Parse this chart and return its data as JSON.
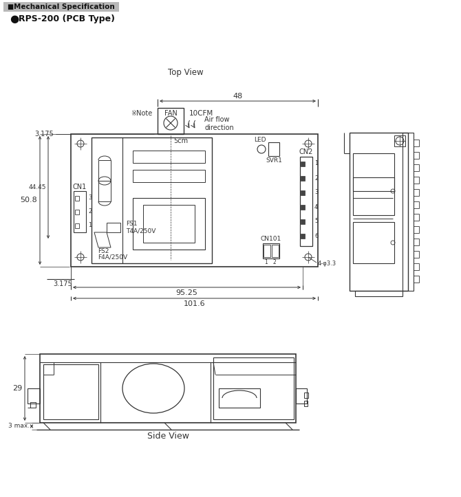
{
  "title_header": "Mechanical Specification",
  "subtitle": "RPS-200 (PCB Type)",
  "top_view_label": "Top View",
  "side_view_label": "Side View",
  "dim_48": "48",
  "dim_50_8": "50.8",
  "dim_44_45": "44.45",
  "dim_3_175_top": "3.175",
  "dim_3_175_bot": "3.175",
  "dim_95_25": "95.25",
  "dim_101_6": "101.6",
  "dim_5cm": "5cm",
  "dim_29": "29",
  "dim_3max": "3 max.",
  "dim_phi33": "4-φ3.3",
  "label_fan": "FAN",
  "label_10cfm": "10CFM",
  "label_airflow": "Air flow\ndirection",
  "label_note": "※Note",
  "label_led": "LED",
  "label_svr1": "SVR1",
  "label_cn1": "CN1",
  "label_cn2": "CN2",
  "label_cn101": "CN101",
  "label_fs1": "FS1",
  "label_fs2": "FS2",
  "label_t4a": "T4A/250V",
  "label_f4a": "F4A/250V",
  "line_color": "#333333",
  "bg_color": "#ffffff",
  "header_bg": "#b8b8b8",
  "cn2_pins": [
    "1",
    "2",
    "3",
    "4",
    "5",
    "6"
  ]
}
